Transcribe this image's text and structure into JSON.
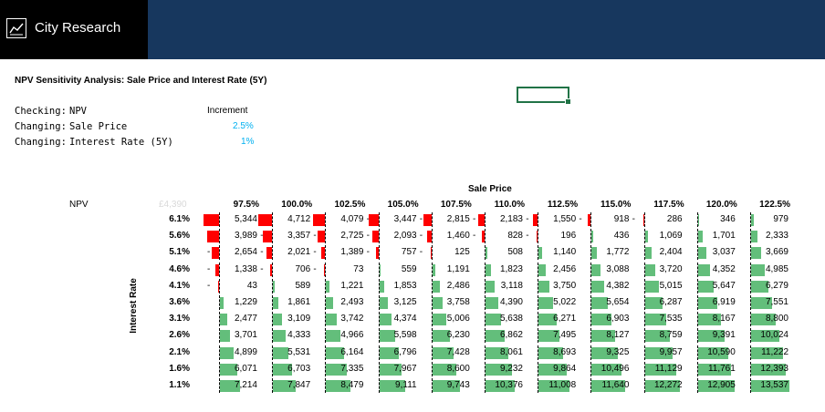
{
  "header": {
    "brand": "City Research",
    "icon": "chart-line-icon",
    "bg_color": "#17375e"
  },
  "title": "NPV Sensitivity Analysis: Sale Price and Interest Rate (5Y)",
  "meta": {
    "checking_label": "Checking:",
    "checking_value": "NPV",
    "increment_label": "Increment",
    "changing1_label": "Changing:",
    "changing1_value": "Sale Price",
    "changing1_inc": "2.5%",
    "changing2_label": "Changing:",
    "changing2_value": "Interest Rate (5Y)",
    "changing2_inc": "1%"
  },
  "table": {
    "col_axis_title": "Sale Price",
    "row_axis_title": "Interest Rate",
    "corner_label": "NPV",
    "corner_value": "£4,390",
    "columns": [
      "97.5%",
      "100.0%",
      "102.5%",
      "105.0%",
      "107.5%",
      "110.0%",
      "112.5%",
      "115.0%",
      "117.5%",
      "120.0%",
      "122.5%"
    ],
    "rows": [
      "6.1%",
      "5.6%",
      "5.1%",
      "4.6%",
      "4.1%",
      "3.6%",
      "3.1%",
      "2.6%",
      "2.1%",
      "1.6%",
      "1.1%"
    ],
    "values": [
      [
        -5344,
        -4712,
        -4079,
        -3447,
        -2815,
        -2183,
        -1550,
        -918,
        -286,
        346,
        979
      ],
      [
        -3989,
        -3357,
        -2725,
        -2093,
        -1460,
        -828,
        -196,
        436,
        1069,
        1701,
        2333
      ],
      [
        -2654,
        -2021,
        -1389,
        -757,
        -125,
        508,
        1140,
        1772,
        2404,
        3037,
        3669
      ],
      [
        -1338,
        -706,
        -73,
        559,
        1191,
        1823,
        2456,
        3088,
        3720,
        4352,
        4985
      ],
      [
        -43,
        589,
        1221,
        1853,
        2486,
        3118,
        3750,
        4382,
        5015,
        5647,
        6279
      ],
      [
        1229,
        1861,
        2493,
        3125,
        3758,
        4390,
        5022,
        5654,
        6287,
        6919,
        7551
      ],
      [
        2477,
        3109,
        3742,
        4374,
        5006,
        5638,
        6271,
        6903,
        7535,
        8167,
        8800
      ],
      [
        3701,
        4333,
        4966,
        5598,
        6230,
        6862,
        7495,
        8127,
        8759,
        9391,
        10024
      ],
      [
        4899,
        5531,
        6164,
        6796,
        7428,
        8061,
        8693,
        9325,
        9957,
        10590,
        11222
      ],
      [
        6071,
        6703,
        7335,
        7967,
        8600,
        9232,
        9864,
        10496,
        11129,
        11761,
        12393
      ],
      [
        7214,
        7847,
        8479,
        9111,
        9743,
        10376,
        11008,
        11640,
        12272,
        12905,
        13537
      ]
    ],
    "display": [
      [
        "5,344",
        "4,712",
        "4,079",
        "3,447",
        "2,815",
        "2,183",
        "1,550",
        "918",
        "286",
        "346",
        "979"
      ],
      [
        "3,989",
        "3,357",
        "2,725",
        "2,093",
        "1,460",
        "828",
        "196",
        "436",
        "1,069",
        "1,701",
        "2,333"
      ],
      [
        "2,654",
        "2,021",
        "1,389",
        "757",
        "125",
        "508",
        "1,140",
        "1,772",
        "2,404",
        "3,037",
        "3,669"
      ],
      [
        "1,338",
        "706",
        "73",
        "559",
        "1,191",
        "1,823",
        "2,456",
        "3,088",
        "3,720",
        "4,352",
        "4,985"
      ],
      [
        "43",
        "589",
        "1,221",
        "1,853",
        "2,486",
        "3,118",
        "3,750",
        "4,382",
        "5,015",
        "5,647",
        "6,279"
      ],
      [
        "1,229",
        "1,861",
        "2,493",
        "3,125",
        "3,758",
        "4,390",
        "5,022",
        "5,654",
        "6,287",
        "6,919",
        "7,551"
      ],
      [
        "2,477",
        "3,109",
        "3,742",
        "4,374",
        "5,006",
        "5,638",
        "6,271",
        "6,903",
        "7,535",
        "8,167",
        "8,800"
      ],
      [
        "3,701",
        "4,333",
        "4,966",
        "5,598",
        "6,230",
        "6,862",
        "7,495",
        "8,127",
        "8,759",
        "9,391",
        "10,024"
      ],
      [
        "4,899",
        "5,531",
        "6,164",
        "6,796",
        "7,428",
        "8,061",
        "8,693",
        "9,325",
        "9,957",
        "10,590",
        "11,222"
      ],
      [
        "6,071",
        "6,703",
        "7,335",
        "7,967",
        "8,600",
        "9,232",
        "9,864",
        "10,496",
        "11,129",
        "11,761",
        "12,393"
      ],
      [
        "7,214",
        "7,847",
        "8,479",
        "9,111",
        "9,743",
        "10,376",
        "11,008",
        "11,640",
        "12,272",
        "12,905",
        "13,537"
      ]
    ],
    "neg_sign": "-",
    "neg_color": "#ff0000",
    "pos_color": "#63be7b",
    "accent_color": "#00b0f0"
  }
}
